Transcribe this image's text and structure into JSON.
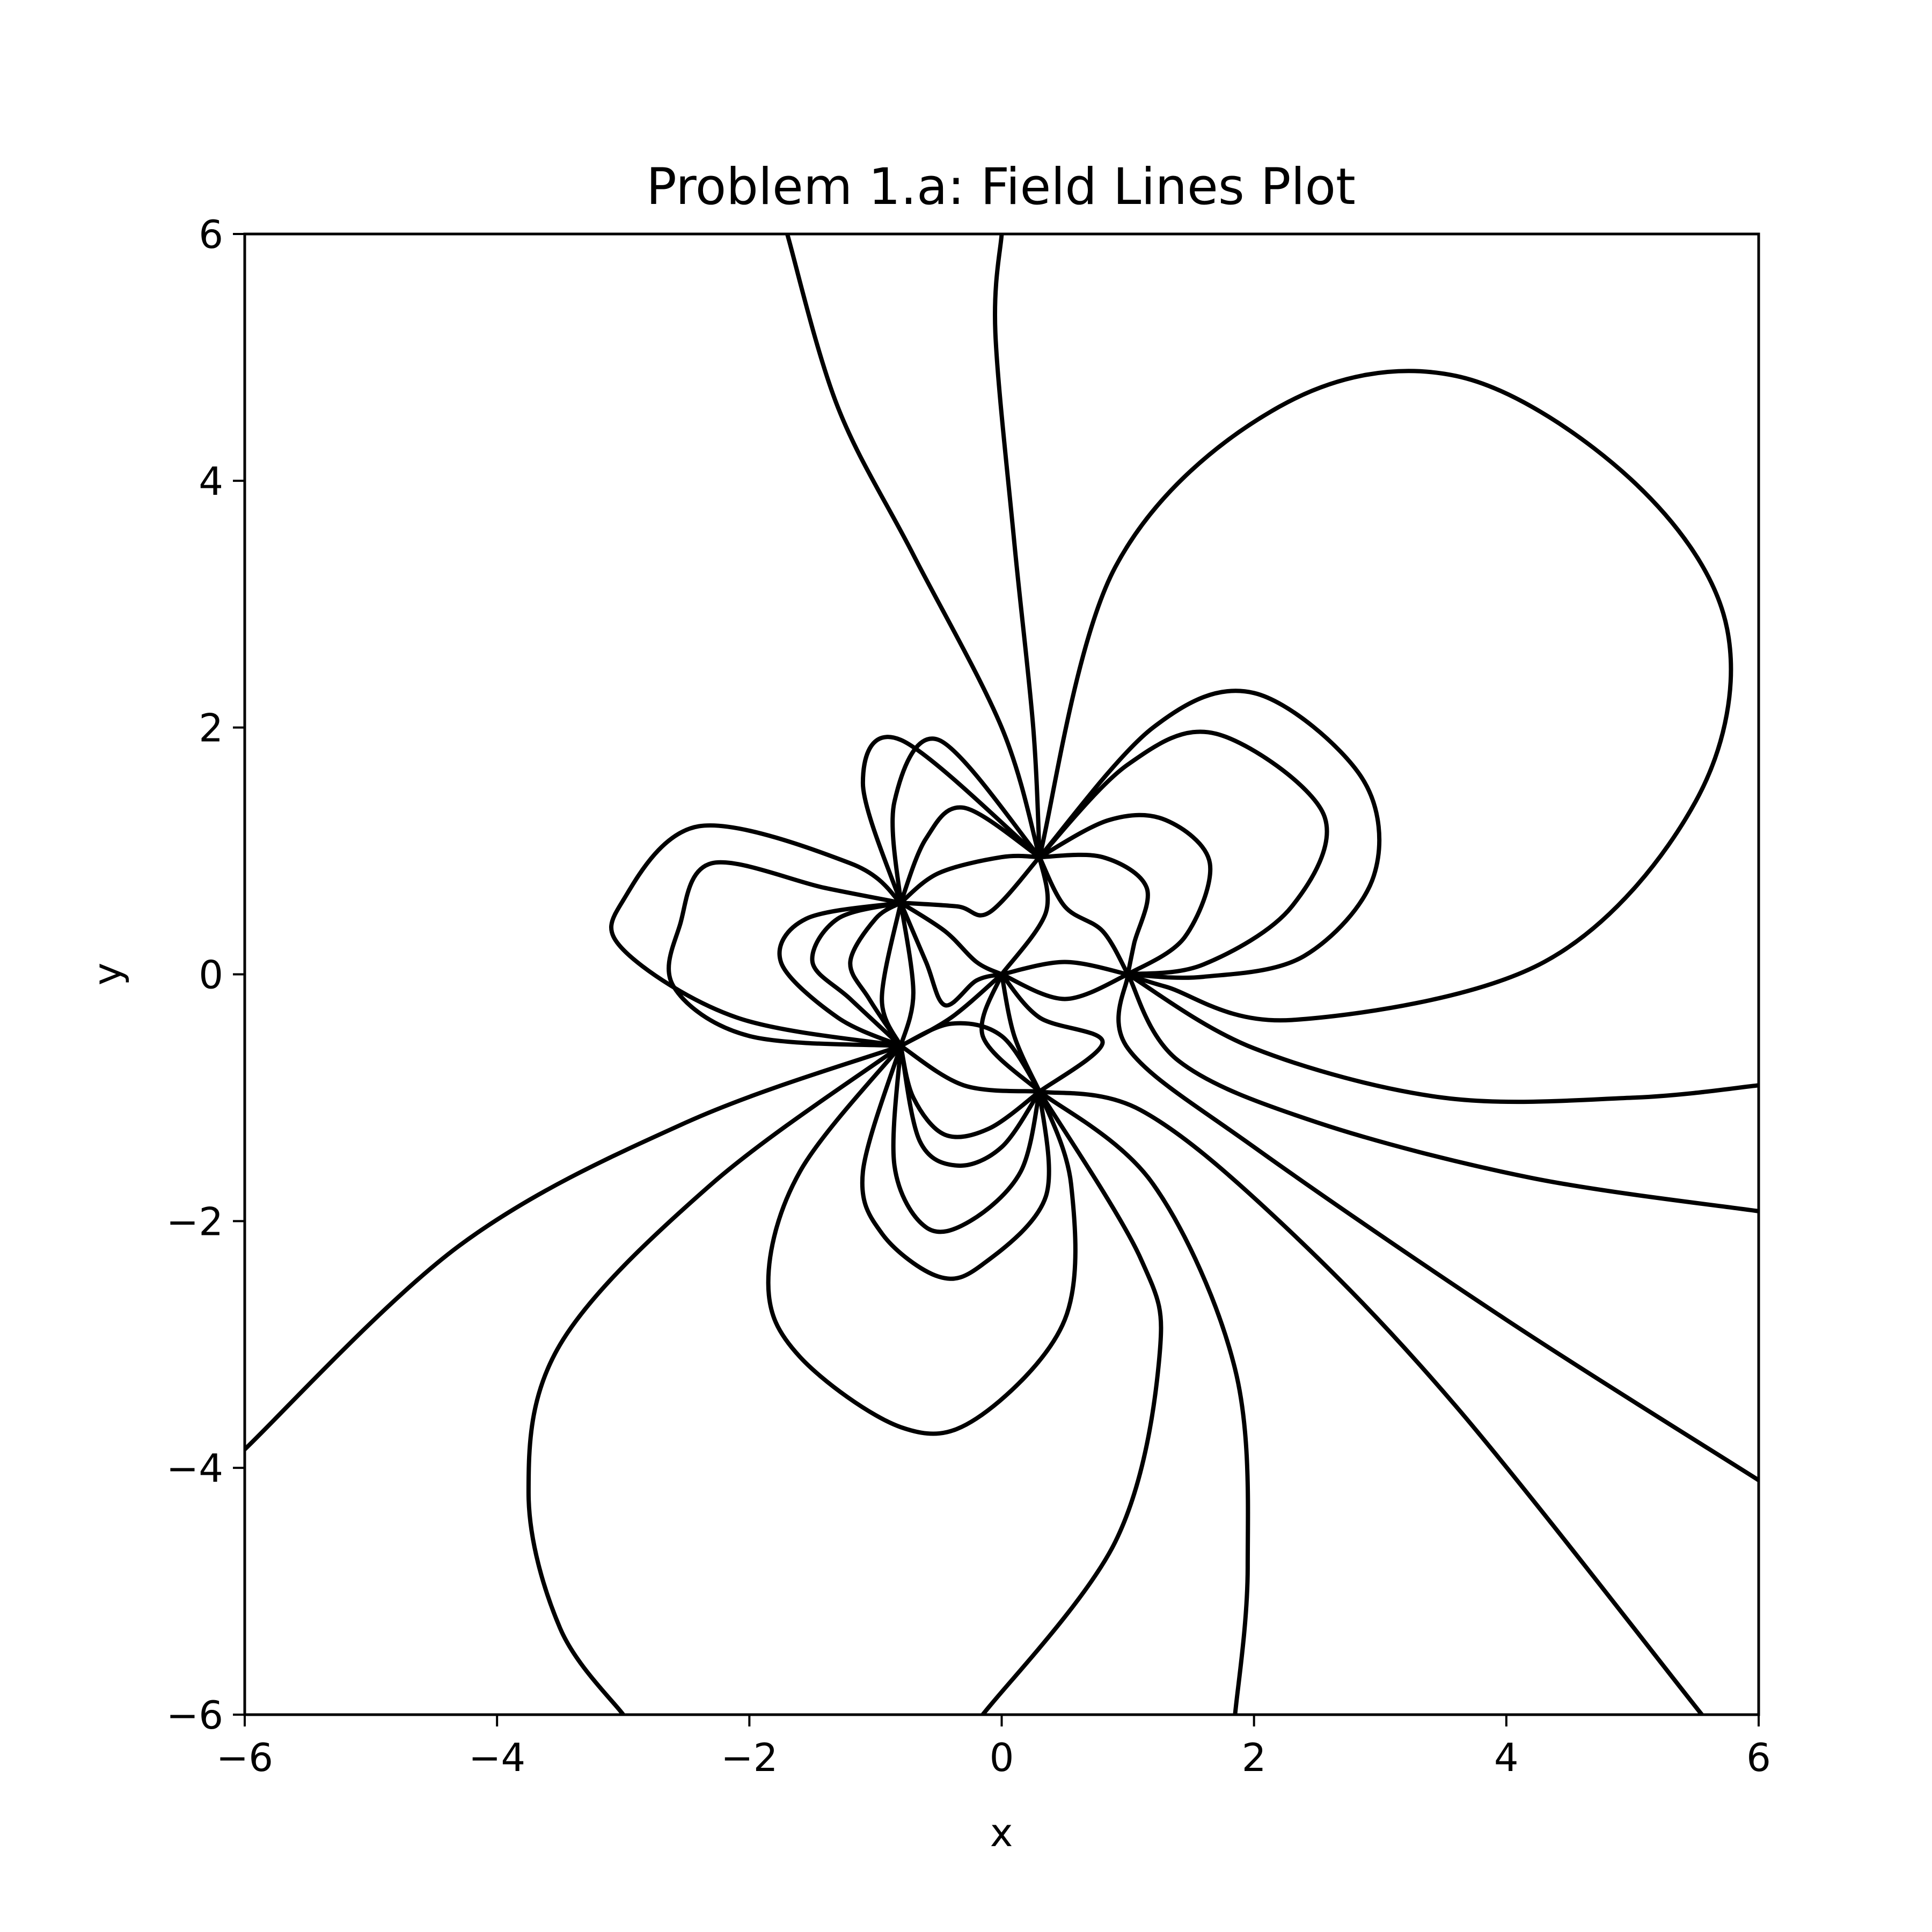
{
  "chart_data": {
    "type": "line",
    "title": "Problem 1.a: Field Lines Plot",
    "xlabel": "x",
    "ylabel": "y",
    "xlim": [
      -6,
      6
    ],
    "ylim": [
      -6,
      6
    ],
    "grid": false,
    "legend": "none",
    "line_color": "#000000",
    "x_ticks": [
      {
        "value": -6,
        "label": "−6"
      },
      {
        "value": -4,
        "label": "−4"
      },
      {
        "value": -2,
        "label": "−2"
      },
      {
        "value": 0,
        "label": "0"
      },
      {
        "value": 2,
        "label": "2"
      },
      {
        "value": 4,
        "label": "4"
      },
      {
        "value": 6,
        "label": "6"
      }
    ],
    "y_ticks": [
      {
        "value": -6,
        "label": "−6"
      },
      {
        "value": -4,
        "label": "−4"
      },
      {
        "value": -2,
        "label": "−2"
      },
      {
        "value": 0,
        "label": "0"
      },
      {
        "value": 2,
        "label": "2"
      },
      {
        "value": 4,
        "label": "4"
      },
      {
        "value": 6,
        "label": "6"
      }
    ],
    "charges": [
      {
        "x": -0.8,
        "y": 0.58
      },
      {
        "x": 0.3,
        "y": 0.95
      },
      {
        "x": 1.0,
        "y": 0.0
      },
      {
        "x": 0.0,
        "y": 0.0
      },
      {
        "x": 0.3,
        "y": -0.95
      },
      {
        "x": -0.8,
        "y": -0.58
      }
    ],
    "series": [
      {
        "points": [
          [
            0.3,
            0.95
          ],
          [
            0.25,
            2.0
          ],
          [
            0.1,
            3.5
          ],
          [
            -0.05,
            5.2
          ],
          [
            0.0,
            6.0
          ]
        ]
      },
      {
        "points": [
          [
            0.3,
            0.95
          ],
          [
            0.0,
            2.0
          ],
          [
            -0.7,
            3.4
          ],
          [
            -1.3,
            4.6
          ],
          [
            -1.7,
            6.0
          ]
        ]
      },
      {
        "points": [
          [
            0.3,
            0.95
          ],
          [
            0.9,
            3.3
          ],
          [
            2.2,
            4.6
          ],
          [
            3.6,
            4.85
          ],
          [
            5.0,
            4.0
          ],
          [
            5.75,
            2.8
          ],
          [
            5.5,
            1.4
          ],
          [
            4.3,
            0.1
          ],
          [
            2.3,
            -0.37
          ],
          [
            1.3,
            -0.1
          ],
          [
            1.0,
            0.0
          ]
        ]
      },
      {
        "points": [
          [
            0.3,
            0.95
          ],
          [
            1.2,
            2.0
          ],
          [
            2.0,
            2.28
          ],
          [
            2.85,
            1.6
          ],
          [
            2.95,
            0.8
          ],
          [
            2.4,
            0.15
          ],
          [
            1.6,
            -0.02
          ],
          [
            1.0,
            0.0
          ]
        ]
      },
      {
        "points": [
          [
            0.3,
            0.95
          ],
          [
            1.0,
            1.7
          ],
          [
            1.7,
            1.95
          ],
          [
            2.55,
            1.3
          ],
          [
            2.3,
            0.55
          ],
          [
            1.6,
            0.08
          ],
          [
            1.0,
            0.0
          ]
        ]
      },
      {
        "points": [
          [
            0.3,
            0.95
          ],
          [
            0.85,
            1.25
          ],
          [
            1.3,
            1.25
          ],
          [
            1.65,
            0.9
          ],
          [
            1.45,
            0.3
          ],
          [
            1.0,
            0.0
          ]
        ]
      },
      {
        "points": [
          [
            0.3,
            0.95
          ],
          [
            0.8,
            0.95
          ],
          [
            1.15,
            0.7
          ],
          [
            1.05,
            0.25
          ],
          [
            1.0,
            0.0
          ]
        ]
      },
      {
        "points": [
          [
            0.3,
            0.95
          ],
          [
            0.5,
            0.55
          ],
          [
            0.8,
            0.35
          ],
          [
            1.0,
            0.0
          ]
        ]
      },
      {
        "points": [
          [
            1.0,
            0.0
          ],
          [
            2.0,
            -0.6
          ],
          [
            3.5,
            -1.0
          ],
          [
            5.0,
            -1.0
          ],
          [
            6.0,
            -0.9
          ]
        ]
      },
      {
        "points": [
          [
            1.0,
            0.0
          ],
          [
            1.4,
            -0.7
          ],
          [
            2.5,
            -1.2
          ],
          [
            4.2,
            -1.65
          ],
          [
            6.0,
            -1.92
          ]
        ]
      },
      {
        "points": [
          [
            1.0,
            0.0
          ],
          [
            1.0,
            -0.6
          ],
          [
            2.0,
            -1.4
          ],
          [
            4.0,
            -2.8
          ],
          [
            6.0,
            -4.1
          ]
        ]
      },
      {
        "points": [
          [
            0.3,
            -0.95
          ],
          [
            1.1,
            -1.1
          ],
          [
            2.2,
            -2.0
          ],
          [
            3.6,
            -3.5
          ],
          [
            5.55,
            -6.0
          ]
        ]
      },
      {
        "points": [
          [
            0.3,
            -0.95
          ],
          [
            1.2,
            -1.7
          ],
          [
            1.85,
            -3.2
          ],
          [
            1.95,
            -4.8
          ],
          [
            1.85,
            -6.0
          ]
        ]
      },
      {
        "points": [
          [
            0.3,
            -0.95
          ],
          [
            1.1,
            -2.3
          ],
          [
            1.25,
            -3.1
          ],
          [
            0.9,
            -4.6
          ],
          [
            -0.15,
            -6.0
          ]
        ]
      },
      {
        "points": [
          [
            0.3,
            -0.95
          ],
          [
            0.55,
            -1.7
          ],
          [
            0.5,
            -2.8
          ],
          [
            -0.2,
            -3.6
          ],
          [
            -0.8,
            -3.67
          ],
          [
            -1.6,
            -3.1
          ],
          [
            -1.85,
            -2.5
          ],
          [
            -1.6,
            -1.6
          ],
          [
            -0.8,
            -0.58
          ]
        ]
      },
      {
        "points": [
          [
            0.3,
            -0.95
          ],
          [
            0.35,
            -1.8
          ],
          [
            -0.15,
            -2.35
          ],
          [
            -0.5,
            -2.45
          ],
          [
            -0.95,
            -2.1
          ],
          [
            -1.1,
            -1.6
          ],
          [
            -0.8,
            -0.58
          ]
        ]
      },
      {
        "points": [
          [
            0.3,
            -0.95
          ],
          [
            0.15,
            -1.6
          ],
          [
            -0.25,
            -2.0
          ],
          [
            -0.6,
            -2.05
          ],
          [
            -0.85,
            -1.55
          ],
          [
            -0.8,
            -0.58
          ]
        ]
      },
      {
        "points": [
          [
            0.3,
            -0.95
          ],
          [
            0.0,
            -1.4
          ],
          [
            -0.35,
            -1.55
          ],
          [
            -0.65,
            -1.35
          ],
          [
            -0.8,
            -0.58
          ]
        ]
      },
      {
        "points": [
          [
            0.3,
            -0.95
          ],
          [
            -0.1,
            -1.25
          ],
          [
            -0.45,
            -1.3
          ],
          [
            -0.7,
            -1.0
          ],
          [
            -0.8,
            -0.58
          ]
        ]
      },
      {
        "points": [
          [
            0.3,
            -0.95
          ],
          [
            -0.3,
            -0.9
          ],
          [
            -0.8,
            -0.58
          ]
        ]
      },
      {
        "points": [
          [
            0.3,
            -0.95
          ],
          [
            0.0,
            -0.5
          ],
          [
            -0.4,
            -0.4
          ],
          [
            -0.8,
            -0.58
          ]
        ]
      },
      {
        "points": [
          [
            -0.8,
            -0.58
          ],
          [
            -2.5,
            -1.2
          ],
          [
            -4.3,
            -2.2
          ],
          [
            -6.0,
            -3.85
          ]
        ]
      },
      {
        "points": [
          [
            -0.8,
            -0.58
          ],
          [
            -2.3,
            -1.7
          ],
          [
            -3.5,
            -3.0
          ],
          [
            -3.75,
            -4.2
          ],
          [
            -3.5,
            -5.3
          ],
          [
            -3.0,
            -6.0
          ]
        ]
      },
      {
        "points": [
          [
            -0.8,
            -0.58
          ],
          [
            -2.0,
            -0.5
          ],
          [
            -2.6,
            -0.1
          ],
          [
            -2.55,
            0.4
          ],
          [
            -2.3,
            0.9
          ],
          [
            -1.4,
            0.7
          ],
          [
            -0.8,
            0.58
          ]
        ]
      },
      {
        "points": [
          [
            -0.8,
            -0.58
          ],
          [
            -2.1,
            -0.35
          ],
          [
            -3.0,
            0.2
          ],
          [
            -3.0,
            0.6
          ],
          [
            -2.4,
            1.2
          ],
          [
            -1.2,
            0.9
          ],
          [
            -0.8,
            0.58
          ]
        ]
      },
      {
        "points": [
          [
            -0.8,
            -0.58
          ],
          [
            -1.3,
            -0.35
          ],
          [
            -1.75,
            0.1
          ],
          [
            -1.55,
            0.45
          ],
          [
            -0.8,
            0.58
          ]
        ]
      },
      {
        "points": [
          [
            -0.8,
            -0.58
          ],
          [
            -1.2,
            -0.2
          ],
          [
            -1.5,
            0.1
          ],
          [
            -1.3,
            0.45
          ],
          [
            -0.8,
            0.58
          ]
        ]
      },
      {
        "points": [
          [
            -0.8,
            -0.58
          ],
          [
            -1.05,
            -0.2
          ],
          [
            -1.2,
            0.1
          ],
          [
            -1.0,
            0.45
          ],
          [
            -0.8,
            0.58
          ]
        ]
      },
      {
        "points": [
          [
            -0.8,
            -0.58
          ],
          [
            -0.95,
            -0.2
          ],
          [
            -0.8,
            0.58
          ]
        ]
      },
      {
        "points": [
          [
            -0.8,
            -0.58
          ],
          [
            -0.7,
            -0.15
          ],
          [
            -0.8,
            0.58
          ]
        ]
      },
      {
        "points": [
          [
            -0.8,
            0.58
          ],
          [
            -0.45,
            0.35
          ],
          [
            -0.2,
            0.1
          ],
          [
            0.0,
            0.0
          ]
        ]
      },
      {
        "points": [
          [
            -0.8,
            0.58
          ],
          [
            -0.6,
            0.1
          ],
          [
            -0.45,
            -0.25
          ],
          [
            -0.2,
            -0.05
          ],
          [
            0.0,
            0.0
          ]
        ]
      },
      {
        "points": [
          [
            -0.8,
            0.58
          ],
          [
            -0.35,
            0.55
          ],
          [
            -0.1,
            0.5
          ],
          [
            0.3,
            0.95
          ]
        ]
      },
      {
        "points": [
          [
            -0.8,
            0.58
          ],
          [
            -0.5,
            0.82
          ],
          [
            0.0,
            0.95
          ],
          [
            0.3,
            0.95
          ]
        ]
      },
      {
        "points": [
          [
            -0.8,
            0.58
          ],
          [
            -0.6,
            1.1
          ],
          [
            -0.3,
            1.35
          ],
          [
            0.3,
            0.95
          ]
        ]
      },
      {
        "points": [
          [
            -0.8,
            0.58
          ],
          [
            -0.85,
            1.4
          ],
          [
            -0.5,
            1.9
          ],
          [
            0.3,
            0.95
          ]
        ]
      },
      {
        "points": [
          [
            -0.8,
            0.58
          ],
          [
            -1.1,
            1.55
          ],
          [
            -0.8,
            1.9
          ],
          [
            0.3,
            0.95
          ]
        ]
      },
      {
        "points": [
          [
            0.0,
            0.0
          ],
          [
            0.5,
            0.1
          ],
          [
            1.0,
            0.0
          ]
        ]
      },
      {
        "points": [
          [
            0.0,
            0.0
          ],
          [
            0.5,
            -0.2
          ],
          [
            1.0,
            0.0
          ]
        ]
      },
      {
        "points": [
          [
            0.0,
            0.0
          ],
          [
            0.35,
            0.5
          ],
          [
            0.3,
            0.95
          ]
        ]
      },
      {
        "points": [
          [
            0.0,
            0.0
          ],
          [
            0.3,
            -0.35
          ],
          [
            0.8,
            -0.55
          ],
          [
            0.3,
            -0.95
          ]
        ]
      },
      {
        "points": [
          [
            0.0,
            0.0
          ],
          [
            0.1,
            -0.5
          ],
          [
            0.3,
            -0.95
          ]
        ]
      },
      {
        "points": [
          [
            0.0,
            0.0
          ],
          [
            -0.15,
            -0.5
          ],
          [
            0.3,
            -0.95
          ]
        ]
      },
      {
        "points": [
          [
            0.0,
            0.0
          ],
          [
            -0.4,
            -0.35
          ],
          [
            -0.8,
            -0.58
          ]
        ]
      }
    ]
  }
}
